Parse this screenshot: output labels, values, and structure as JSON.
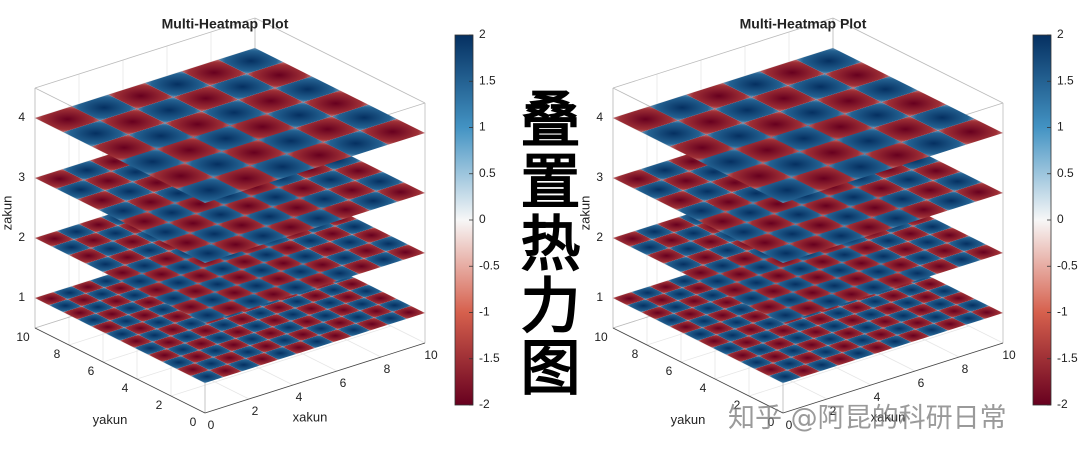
{
  "chart_data": [
    {
      "type": "heatmap3d",
      "title": "Multi-Heatmap Plot",
      "xlabel": "xakun",
      "ylabel": "yakun",
      "zlabel": "zakun",
      "xlim": [
        0,
        10
      ],
      "ylim": [
        0,
        10
      ],
      "zlim": [
        0.5,
        4.5
      ],
      "xticks": [
        0,
        2,
        4,
        6,
        8,
        10
      ],
      "yticks": [
        0,
        2,
        4,
        6,
        8,
        10
      ],
      "zticks": [
        1,
        2,
        3,
        4
      ],
      "clim": [
        -2,
        2
      ],
      "cticks": [
        -2,
        -1.5,
        -1,
        -0.5,
        0,
        0.5,
        1,
        1.5,
        2
      ],
      "layers": [
        {
          "z": 1,
          "values": [
            [
              2,
              -2,
              2,
              -2,
              2,
              -2,
              2,
              -2,
              2,
              -2,
              2,
              -2
            ],
            [
              -2,
              2,
              -2,
              2,
              -2,
              2,
              -2,
              2,
              -2,
              2,
              -2,
              2
            ],
            [
              2,
              -2,
              2,
              -2,
              2,
              -2,
              2,
              -2,
              2,
              -2,
              2,
              -2
            ],
            [
              -2,
              2,
              -2,
              2,
              -2,
              2,
              -2,
              2,
              -2,
              2,
              -2,
              2
            ],
            [
              2,
              -2,
              2,
              -2,
              2,
              -2,
              2,
              -2,
              2,
              -2,
              2,
              -2
            ],
            [
              -2,
              2,
              -2,
              2,
              -2,
              2,
              -2,
              2,
              -2,
              2,
              -2,
              2
            ],
            [
              2,
              -2,
              2,
              -2,
              2,
              -2,
              2,
              -2,
              2,
              -2,
              2,
              -2
            ],
            [
              -2,
              2,
              -2,
              2,
              -2,
              2,
              -2,
              2,
              -2,
              2,
              -2,
              2
            ],
            [
              2,
              -2,
              2,
              -2,
              2,
              -2,
              2,
              -2,
              2,
              -2,
              2,
              -2
            ],
            [
              -2,
              2,
              -2,
              2,
              -2,
              2,
              -2,
              2,
              -2,
              2,
              -2,
              2
            ],
            [
              2,
              -2,
              2,
              -2,
              2,
              -2,
              2,
              -2,
              2,
              -2,
              2,
              -2
            ],
            [
              -2,
              2,
              -2,
              2,
              -2,
              2,
              -2,
              2,
              -2,
              2,
              -2,
              2
            ]
          ]
        },
        {
          "z": 2,
          "values": [
            [
              2,
              -2,
              2,
              -2,
              2,
              -2,
              2,
              -2,
              2,
              -2
            ],
            [
              -2,
              2,
              -2,
              2,
              -2,
              2,
              -2,
              2,
              -2,
              2
            ],
            [
              2,
              -2,
              2,
              -2,
              2,
              -2,
              2,
              -2,
              2,
              -2
            ],
            [
              -2,
              2,
              -2,
              2,
              -2,
              2,
              -2,
              2,
              -2,
              2
            ],
            [
              2,
              -2,
              2,
              -2,
              2,
              -2,
              2,
              -2,
              2,
              -2
            ],
            [
              -2,
              2,
              -2,
              2,
              -2,
              2,
              -2,
              2,
              -2,
              2
            ],
            [
              2,
              -2,
              2,
              -2,
              2,
              -2,
              2,
              -2,
              2,
              -2
            ],
            [
              -2,
              2,
              -2,
              2,
              -2,
              2,
              -2,
              2,
              -2,
              2
            ],
            [
              2,
              -2,
              2,
              -2,
              2,
              -2,
              2,
              -2,
              2,
              -2
            ],
            [
              -2,
              2,
              -2,
              2,
              -2,
              2,
              -2,
              2,
              -2,
              2
            ]
          ]
        },
        {
          "z": 3,
          "values": [
            [
              2,
              -2,
              2,
              -2,
              2,
              -2,
              2,
              -2
            ],
            [
              -2,
              2,
              -2,
              2,
              -2,
              2,
              -2,
              2
            ],
            [
              2,
              -2,
              2,
              -2,
              2,
              -2,
              2,
              -2
            ],
            [
              -2,
              2,
              -2,
              2,
              -2,
              2,
              -2,
              2
            ],
            [
              2,
              -2,
              2,
              -2,
              2,
              -2,
              2,
              -2
            ],
            [
              -2,
              2,
              -2,
              2,
              -2,
              2,
              -2,
              2
            ],
            [
              2,
              -2,
              2,
              -2,
              2,
              -2,
              2,
              -2
            ],
            [
              -2,
              2,
              -2,
              2,
              -2,
              2,
              -2,
              2
            ]
          ]
        },
        {
          "z": 4,
          "values": [
            [
              2,
              -2,
              2,
              -2,
              2,
              -2
            ],
            [
              -2,
              2,
              -2,
              2,
              -2,
              2
            ],
            [
              2,
              -2,
              2,
              -2,
              2,
              -2
            ],
            [
              -2,
              2,
              -2,
              2,
              -2,
              2
            ],
            [
              2,
              -2,
              2,
              -2,
              2,
              -2
            ],
            [
              -2,
              2,
              -2,
              2,
              -2,
              2
            ]
          ]
        }
      ]
    },
    {
      "type": "heatmap3d",
      "title": "Multi-Heatmap Plot",
      "xlabel": "xakun",
      "ylabel": "yakun",
      "zlabel": "zakun",
      "xlim": [
        0,
        10
      ],
      "ylim": [
        0,
        10
      ],
      "zlim": [
        0.5,
        4.5
      ],
      "xticks": [
        0,
        2,
        4,
        6,
        8,
        10
      ],
      "yticks": [
        0,
        2,
        4,
        6,
        8,
        10
      ],
      "zticks": [
        1,
        2,
        3,
        4
      ],
      "clim": [
        -2,
        2
      ],
      "cticks": [
        -2,
        -1.5,
        -1,
        -0.5,
        0,
        0.5,
        1,
        1.5,
        2
      ],
      "layers": [
        {
          "z": 1,
          "values": [
            [
              2,
              -2,
              2,
              -2,
              2,
              -2,
              2,
              -2,
              2,
              -2,
              2,
              -2
            ],
            [
              -2,
              2,
              -2,
              2,
              -2,
              2,
              -2,
              2,
              -2,
              2,
              -2,
              2
            ],
            [
              2,
              -2,
              2,
              -2,
              2,
              -2,
              2,
              -2,
              2,
              -2,
              2,
              -2
            ],
            [
              -2,
              2,
              -2,
              2,
              -2,
              2,
              -2,
              2,
              -2,
              2,
              -2,
              2
            ],
            [
              2,
              -2,
              2,
              -2,
              2,
              -2,
              2,
              -2,
              2,
              -2,
              2,
              -2
            ],
            [
              -2,
              2,
              -2,
              2,
              -2,
              2,
              -2,
              2,
              -2,
              2,
              -2,
              2
            ],
            [
              2,
              -2,
              2,
              -2,
              2,
              -2,
              2,
              -2,
              2,
              -2,
              2,
              -2
            ],
            [
              -2,
              2,
              -2,
              2,
              -2,
              2,
              -2,
              2,
              -2,
              2,
              -2,
              2
            ],
            [
              2,
              -2,
              2,
              -2,
              2,
              -2,
              2,
              -2,
              2,
              -2,
              2,
              -2
            ],
            [
              -2,
              2,
              -2,
              2,
              -2,
              2,
              -2,
              2,
              -2,
              2,
              -2,
              2
            ],
            [
              2,
              -2,
              2,
              -2,
              2,
              -2,
              2,
              -2,
              2,
              -2,
              2,
              -2
            ],
            [
              -2,
              2,
              -2,
              2,
              -2,
              2,
              -2,
              2,
              -2,
              2,
              -2,
              2
            ]
          ]
        },
        {
          "z": 2,
          "values": [
            [
              2,
              -2,
              2,
              -2,
              2,
              -2,
              2,
              -2,
              2,
              -2
            ],
            [
              -2,
              2,
              -2,
              2,
              -2,
              2,
              -2,
              2,
              -2,
              2
            ],
            [
              2,
              -2,
              2,
              -2,
              2,
              -2,
              2,
              -2,
              2,
              -2
            ],
            [
              -2,
              2,
              -2,
              2,
              -2,
              2,
              -2,
              2,
              -2,
              2
            ],
            [
              2,
              -2,
              2,
              -2,
              2,
              -2,
              2,
              -2,
              2,
              -2
            ],
            [
              -2,
              2,
              -2,
              2,
              -2,
              2,
              -2,
              2,
              -2,
              2
            ],
            [
              2,
              -2,
              2,
              -2,
              2,
              -2,
              2,
              -2,
              2,
              -2
            ],
            [
              -2,
              2,
              -2,
              2,
              -2,
              2,
              -2,
              2,
              -2,
              2
            ],
            [
              2,
              -2,
              2,
              -2,
              2,
              -2,
              2,
              -2,
              2,
              -2
            ],
            [
              -2,
              2,
              -2,
              2,
              -2,
              2,
              -2,
              2,
              -2,
              2
            ]
          ]
        },
        {
          "z": 3,
          "values": [
            [
              2,
              -2,
              2,
              -2,
              2,
              -2,
              2,
              -2
            ],
            [
              -2,
              2,
              -2,
              2,
              -2,
              2,
              -2,
              2
            ],
            [
              2,
              -2,
              2,
              -2,
              2,
              -2,
              2,
              -2
            ],
            [
              -2,
              2,
              -2,
              2,
              -2,
              2,
              -2,
              2
            ],
            [
              2,
              -2,
              2,
              -2,
              2,
              -2,
              2,
              -2
            ],
            [
              -2,
              2,
              -2,
              2,
              -2,
              2,
              -2,
              2
            ],
            [
              2,
              -2,
              2,
              -2,
              2,
              -2,
              2,
              -2
            ],
            [
              -2,
              2,
              -2,
              2,
              -2,
              2,
              -2,
              2
            ]
          ]
        },
        {
          "z": 4,
          "values": [
            [
              2,
              -2,
              2,
              -2,
              2,
              -2
            ],
            [
              -2,
              2,
              -2,
              2,
              -2,
              2
            ],
            [
              2,
              -2,
              2,
              -2,
              2,
              -2
            ],
            [
              -2,
              2,
              -2,
              2,
              -2,
              2
            ],
            [
              2,
              -2,
              2,
              -2,
              2,
              -2
            ],
            [
              -2,
              2,
              -2,
              2,
              -2,
              2
            ]
          ]
        }
      ]
    }
  ],
  "center_text": "叠置热力图",
  "watermark": "知乎 @阿昆的科研日常"
}
